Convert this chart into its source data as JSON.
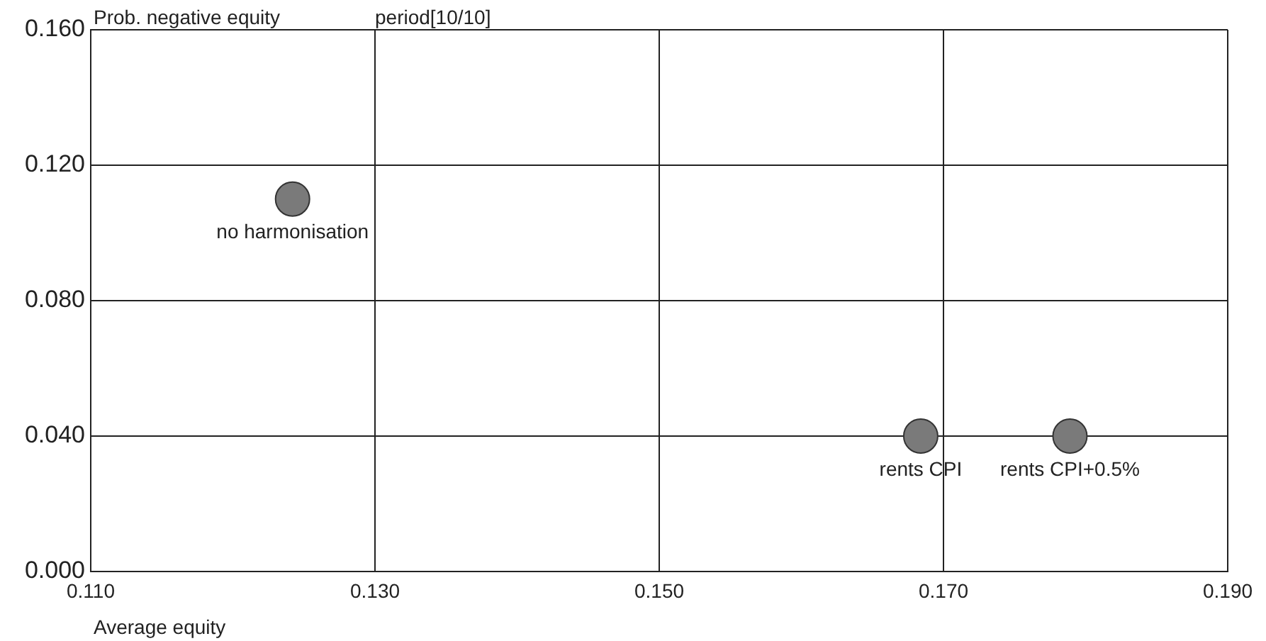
{
  "chart_data": {
    "type": "scatter",
    "title": "period[10/10]",
    "xlabel": "Average equity",
    "ylabel": "Prob. negative equity",
    "x": [
      0.1242,
      0.1684,
      0.1789
    ],
    "series": [
      {
        "color": "#7a7a7a",
        "values": [
          0.11,
          0.04,
          0.04
        ]
      }
    ],
    "annotations": [
      {
        "text": "no harmonisation",
        "x": 0.1242,
        "y": 0.11
      },
      {
        "text": "rents CPI",
        "x": 0.1684,
        "y": 0.04
      },
      {
        "text": "rents CPI+0.5%",
        "x": 0.1789,
        "y": 0.04
      }
    ],
    "xlim": [
      0.11,
      0.19
    ],
    "xticks": [
      {
        "value": 0.11,
        "label": "0.110"
      },
      {
        "value": 0.13,
        "label": "0.130"
      },
      {
        "value": 0.15,
        "label": "0.150"
      },
      {
        "value": 0.17,
        "label": "0.170"
      },
      {
        "value": 0.19,
        "label": "0.190"
      }
    ],
    "ylim": [
      0.0,
      0.16
    ],
    "yticks": [
      {
        "value": 0.0,
        "label": "0.000"
      },
      {
        "value": 0.04,
        "label": "0.040"
      },
      {
        "value": 0.08,
        "label": "0.080"
      },
      {
        "value": 0.12,
        "label": "0.120"
      },
      {
        "value": 0.16,
        "label": "0.160"
      }
    ],
    "grid": true,
    "legend": false,
    "marker": "circle"
  }
}
